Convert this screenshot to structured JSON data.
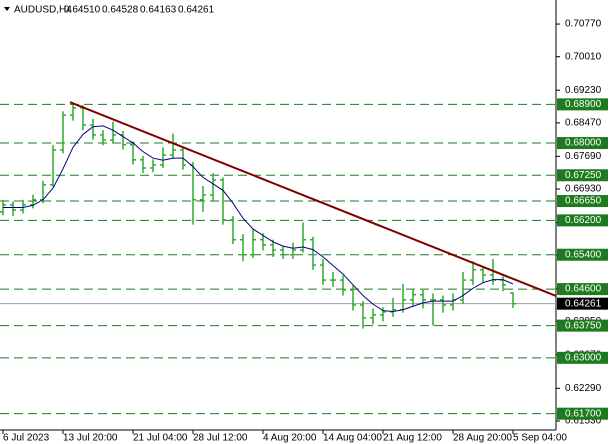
{
  "chart_data": {
    "type": "ohlc",
    "header": [
      "AUDUSD,H4",
      "0.64510",
      "0.64528",
      "0.64163",
      "0.64261"
    ],
    "color": "#2eaa2e",
    "open": [
      0.664,
      0.6656,
      0.6644,
      0.6656,
      0.6668,
      0.6703,
      0.6784,
      0.6865,
      0.6882,
      0.6842,
      0.6819,
      0.6807,
      0.6819,
      0.6796,
      0.6761,
      0.6742,
      0.6749,
      0.6772,
      0.6784,
      0.6749,
      0.6668,
      0.6679,
      0.6714,
      0.6621,
      0.6575,
      0.654,
      0.6575,
      0.6563,
      0.6551,
      0.654,
      0.6551,
      0.6575,
      0.6516,
      0.6481,
      0.6481,
      0.6458,
      0.6423,
      0.6393,
      0.64,
      0.6407,
      0.6412,
      0.6435,
      0.6447,
      0.6435,
      0.6435,
      0.6423,
      0.6435,
      0.6481,
      0.6505,
      0.6493,
      0.6481,
      0.6451
    ],
    "high": [
      0.6668,
      0.6664,
      0.6668,
      0.668,
      0.6712,
      0.6795,
      0.6874,
      0.6895,
      0.6888,
      0.6856,
      0.683,
      0.685,
      0.6828,
      0.6804,
      0.677,
      0.6762,
      0.679,
      0.6822,
      0.679,
      0.6756,
      0.67,
      0.673,
      0.672,
      0.663,
      0.6588,
      0.66,
      0.659,
      0.6575,
      0.656,
      0.6568,
      0.6615,
      0.6582,
      0.653,
      0.65,
      0.6492,
      0.6468,
      0.6432,
      0.6415,
      0.6418,
      0.644,
      0.6472,
      0.646,
      0.6458,
      0.645,
      0.6445,
      0.645,
      0.65,
      0.6525,
      0.6512,
      0.653,
      0.649,
      0.64528
    ],
    "low": [
      0.6632,
      0.663,
      0.6636,
      0.6648,
      0.666,
      0.6698,
      0.6776,
      0.6852,
      0.683,
      0.6808,
      0.6795,
      0.68,
      0.6785,
      0.675,
      0.673,
      0.6732,
      0.6742,
      0.6765,
      0.6738,
      0.661,
      0.664,
      0.6665,
      0.661,
      0.6565,
      0.6525,
      0.6532,
      0.655,
      0.6535,
      0.653,
      0.653,
      0.6545,
      0.6505,
      0.647,
      0.6465,
      0.6445,
      0.641,
      0.6368,
      0.6378,
      0.6385,
      0.6395,
      0.6405,
      0.642,
      0.6415,
      0.6375,
      0.6405,
      0.641,
      0.6425,
      0.647,
      0.6475,
      0.647,
      0.6455,
      0.64163
    ],
    "close": [
      0.6656,
      0.6644,
      0.6656,
      0.6668,
      0.6703,
      0.6784,
      0.6865,
      0.6882,
      0.6842,
      0.6819,
      0.6807,
      0.6819,
      0.6796,
      0.6761,
      0.6742,
      0.6749,
      0.6772,
      0.6784,
      0.6749,
      0.6668,
      0.6679,
      0.6714,
      0.6621,
      0.6575,
      0.654,
      0.6575,
      0.6563,
      0.6551,
      0.654,
      0.6551,
      0.6575,
      0.6516,
      0.6481,
      0.6481,
      0.6458,
      0.6423,
      0.6393,
      0.64,
      0.6407,
      0.6412,
      0.6435,
      0.6447,
      0.6435,
      0.6435,
      0.6423,
      0.6435,
      0.6481,
      0.6505,
      0.6493,
      0.6481,
      0.647,
      0.64261
    ],
    "ma": {
      "color": "#000080",
      "values": [
        0.665,
        0.665,
        0.665,
        0.6655,
        0.6668,
        0.6695,
        0.674,
        0.679,
        0.682,
        0.6838,
        0.684,
        0.683,
        0.6815,
        0.68,
        0.678,
        0.6765,
        0.676,
        0.6765,
        0.6765,
        0.6745,
        0.672,
        0.6705,
        0.669,
        0.666,
        0.6625,
        0.66,
        0.6585,
        0.657,
        0.656,
        0.6555,
        0.6558,
        0.6552,
        0.6535,
        0.6515,
        0.6495,
        0.647,
        0.6445,
        0.6425,
        0.641,
        0.6408,
        0.6412,
        0.642,
        0.6428,
        0.6432,
        0.6432,
        0.6432,
        0.6445,
        0.6462,
        0.6475,
        0.6482,
        0.6482,
        0.6472
      ]
    },
    "trendline": {
      "color": "#800000",
      "x": [
        6.7,
        55.3
      ],
      "y": [
        0.6895,
        0.6444
      ]
    },
    "xlim": [
      -0.3,
      55.3
    ],
    "ylim": [
      0.6132,
      0.7133
    ],
    "xticks": [
      {
        "value": 0,
        "label": "6 Jul 2023"
      },
      {
        "value": 6,
        "label": "13 Jul 20:00"
      },
      {
        "value": 13,
        "label": "21 Jul 04:00"
      },
      {
        "value": 19,
        "label": "28 Jul 12:00"
      },
      {
        "value": 26,
        "label": "4 Aug 20:00"
      },
      {
        "value": 32,
        "label": "14 Aug 04:00"
      },
      {
        "value": 38,
        "label": "21 Aug 12:00"
      },
      {
        "value": 45,
        "label": "28 Aug 20:00"
      },
      {
        "value": 51,
        "label": "5 Sep 04:00"
      }
    ],
    "yticks": [
      {
        "value": 0.7077,
        "label": "0.70770"
      },
      {
        "value": 0.7001,
        "label": "0.70010"
      },
      {
        "value": 0.6923,
        "label": "0.69230"
      },
      {
        "value": 0.6847,
        "label": "0.68470"
      },
      {
        "value": 0.6769,
        "label": "0.67690"
      },
      {
        "value": 0.6693,
        "label": "0.66930"
      },
      {
        "value": 0.6615,
        "label": "0.66150"
      },
      {
        "value": 0.6539,
        "label": "0.65390"
      },
      {
        "value": 0.6461,
        "label": "0.64610"
      },
      {
        "value": 0.6385,
        "label": "0.63850"
      },
      {
        "value": 0.6307,
        "label": "0.63070"
      },
      {
        "value": 0.6229,
        "label": "0.62290"
      },
      {
        "value": 0.6153,
        "label": "0.61530"
      }
    ],
    "level_color": "#1e7a1e",
    "levels": [
      {
        "value": 0.689,
        "label": "0.68900"
      },
      {
        "value": 0.68,
        "label": "0.68000"
      },
      {
        "value": 0.6725,
        "label": "0.67250"
      },
      {
        "value": 0.6665,
        "label": "0.66650"
      },
      {
        "value": 0.662,
        "label": "0.66200"
      },
      {
        "value": 0.654,
        "label": "0.65400"
      },
      {
        "value": 0.646,
        "label": "0.64600"
      },
      {
        "value": 0.6375,
        "label": "0.63750"
      },
      {
        "value": 0.63,
        "label": "0.63000"
      },
      {
        "value": 0.617,
        "label": "0.61700"
      }
    ],
    "current_price": {
      "value": 0.64261,
      "label": "0.64261"
    }
  }
}
